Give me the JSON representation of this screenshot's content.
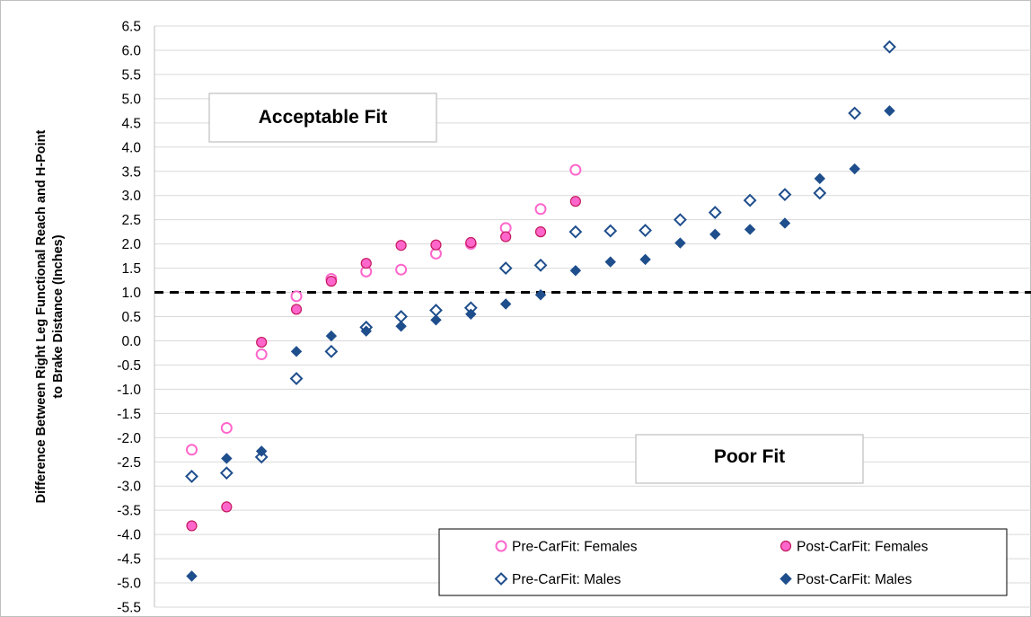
{
  "chart_data": {
    "type": "scatter",
    "title": "",
    "xlabel": "",
    "ylabel": "Difference Between Right Leg Functional Reach and  H-Point to Brake Distance (Inches)",
    "ylabel_lines": [
      "Difference Between Right Leg Functional Reach and  H-Point",
      "to Brake Distance (Inches)"
    ],
    "ylim": [
      -5.5,
      6.5
    ],
    "ytick_step": 0.5,
    "yticks": [
      "6.5",
      "6.0",
      "5.5",
      "5.0",
      "4.5",
      "4.0",
      "3.5",
      "3.0",
      "2.5",
      "2.0",
      "1.5",
      "1.0",
      "0.5",
      "0.0",
      "-0.5",
      "-1.0",
      "-1.5",
      "-2.0",
      "-2.5",
      "-3.0",
      "-3.5",
      "-4.0",
      "-4.5",
      "-5.0",
      "-5.5"
    ],
    "xlim": [
      0,
      25
    ],
    "grid": true,
    "threshold": 1.0,
    "annotations": {
      "acceptable": "Acceptable Fit",
      "poor": "Poor Fit"
    },
    "legend_position": "bottom-right",
    "series": [
      {
        "name": "Pre-CarFit: Females",
        "marker": "open-circle",
        "color": "#ff66cc",
        "points": [
          [
            1,
            -2.25
          ],
          [
            2,
            -1.8
          ],
          [
            3,
            -0.28
          ],
          [
            4,
            0.92
          ],
          [
            5,
            1.28
          ],
          [
            6,
            1.43
          ],
          [
            7,
            1.47
          ],
          [
            8,
            1.8
          ],
          [
            9,
            2.0
          ],
          [
            10,
            2.33
          ],
          [
            11,
            2.72
          ],
          [
            12,
            3.53
          ]
        ]
      },
      {
        "name": "Post-CarFit: Females",
        "marker": "filled-circle",
        "color": "#ff66cc",
        "points": [
          [
            1,
            -3.82
          ],
          [
            2,
            -3.43
          ],
          [
            3,
            -0.03
          ],
          [
            4,
            0.65
          ],
          [
            5,
            1.23
          ],
          [
            6,
            1.6
          ],
          [
            7,
            1.97
          ],
          [
            8,
            1.98
          ],
          [
            9,
            2.03
          ],
          [
            10,
            2.15
          ],
          [
            11,
            2.25
          ],
          [
            12,
            2.88
          ]
        ]
      },
      {
        "name": "Pre-CarFit: Males",
        "marker": "open-diamond",
        "color": "#1f4e8c",
        "points": [
          [
            1,
            -2.8
          ],
          [
            2,
            -2.73
          ],
          [
            3,
            -2.4
          ],
          [
            4,
            -0.78
          ],
          [
            5,
            -0.22
          ],
          [
            6,
            0.28
          ],
          [
            7,
            0.5
          ],
          [
            8,
            0.63
          ],
          [
            9,
            0.68
          ],
          [
            10,
            1.5
          ],
          [
            11,
            1.56
          ],
          [
            12,
            2.25
          ],
          [
            13,
            2.27
          ],
          [
            14,
            2.28
          ],
          [
            15,
            2.5
          ],
          [
            16,
            2.65
          ],
          [
            17,
            2.9
          ],
          [
            18,
            3.02
          ],
          [
            19,
            3.05
          ],
          [
            20,
            4.7
          ],
          [
            21,
            6.07
          ]
        ]
      },
      {
        "name": "Post-CarFit: Males",
        "marker": "filled-diamond",
        "color": "#1f4e8c",
        "points": [
          [
            1,
            -4.86
          ],
          [
            2,
            -2.43
          ],
          [
            3,
            -2.28
          ],
          [
            4,
            -0.22
          ],
          [
            5,
            0.1
          ],
          [
            6,
            0.2
          ],
          [
            7,
            0.3
          ],
          [
            8,
            0.43
          ],
          [
            9,
            0.55
          ],
          [
            10,
            0.76
          ],
          [
            11,
            0.95
          ],
          [
            12,
            1.45
          ],
          [
            13,
            1.63
          ],
          [
            14,
            1.68
          ],
          [
            15,
            2.02
          ],
          [
            16,
            2.2
          ],
          [
            17,
            2.3
          ],
          [
            18,
            2.43
          ],
          [
            19,
            3.35
          ],
          [
            20,
            3.55
          ],
          [
            21,
            4.75
          ]
        ]
      }
    ]
  }
}
